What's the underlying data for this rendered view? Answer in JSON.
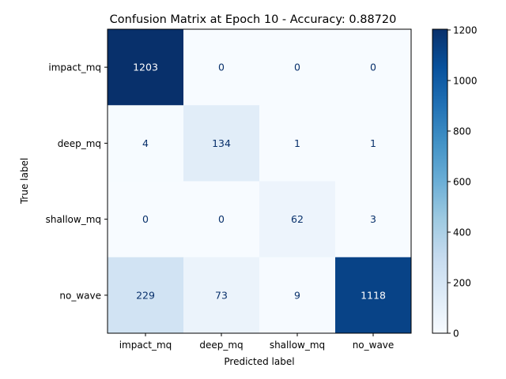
{
  "chart_data": {
    "type": "heatmap",
    "title": "Confusion Matrix at Epoch 10 - Accuracy: 0.88720",
    "xlabel": "Predicted label",
    "ylabel": "True label",
    "x_categories": [
      "impact_mq",
      "deep_mq",
      "shallow_mq",
      "no_wave"
    ],
    "y_categories": [
      "impact_mq",
      "deep_mq",
      "shallow_mq",
      "no_wave"
    ],
    "matrix": [
      [
        1203,
        0,
        0,
        0
      ],
      [
        4,
        134,
        1,
        1
      ],
      [
        0,
        0,
        62,
        3
      ],
      [
        229,
        73,
        9,
        1118
      ]
    ],
    "colorbar": {
      "colormap": "Blues",
      "range": [
        0,
        1203
      ],
      "ticks": [
        "0",
        "200",
        "400",
        "600",
        "800",
        "1000",
        "1200"
      ]
    }
  }
}
